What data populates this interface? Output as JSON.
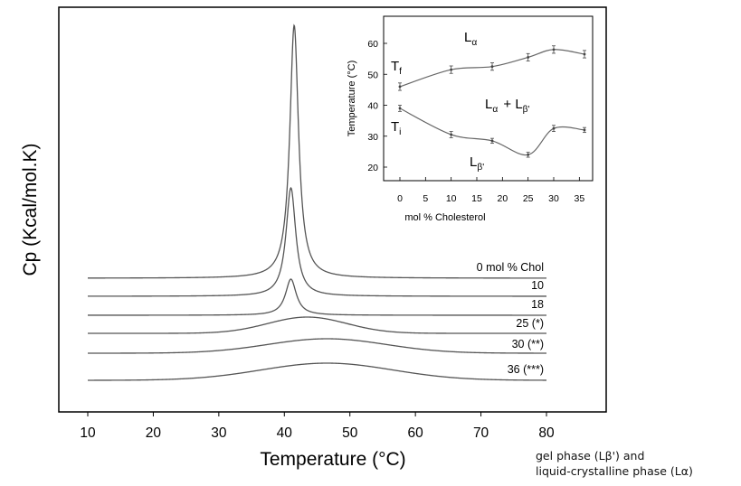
{
  "caption": {
    "line1": "gel phase (Lβ') and",
    "line2": "liquid-crystalline phase (Lα)"
  },
  "chart_data": [
    {
      "type": "line",
      "xlabel": "Temperature (°C)",
      "ylabel": "Cp (Kcal/mol.K)",
      "xlim": [
        5,
        88
      ],
      "x_ticks": [
        10,
        20,
        30,
        40,
        50,
        60,
        70,
        80
      ],
      "y_ticks_shown": false,
      "series": [
        {
          "name": "0 mol % Chol",
          "baseline": 0,
          "peak_x": 41.5,
          "peak_height": 280,
          "width": 0.8,
          "broad": false
        },
        {
          "name": "10",
          "baseline": 1,
          "peak_x": 41.0,
          "peak_height": 120,
          "width": 0.9,
          "broad": false
        },
        {
          "name": "18",
          "baseline": 2,
          "peak_x": 41.0,
          "peak_height": 40,
          "width": 1.0,
          "broad": false
        },
        {
          "name": "25 (*)",
          "baseline": 3,
          "peak_x": 43.5,
          "peak_height": 18,
          "width": 6.0,
          "broad": true
        },
        {
          "name": "30 (**)",
          "baseline": 4,
          "peak_x": 46.5,
          "peak_height": 16,
          "width": 9.0,
          "broad": true
        },
        {
          "name": "36 (***)",
          "baseline": 5,
          "peak_x": 46.5,
          "peak_height": 19,
          "width": 10.0,
          "broad": true
        }
      ]
    },
    {
      "type": "line",
      "xlabel": "mol % Cholesterol",
      "ylabel": "Temperature (°C)",
      "xlim": [
        -3,
        37
      ],
      "ylim": [
        15,
        68
      ],
      "x_ticks": [
        0,
        5,
        10,
        15,
        20,
        25,
        30,
        35
      ],
      "y_ticks": [
        20,
        30,
        40,
        50,
        60
      ],
      "region_labels": {
        "top": "L",
        "top_sub": "α",
        "middle": "L",
        "middle_sub": "α",
        "middle_plus": "+ L",
        "middle_sub2": "β'",
        "bottom": "L",
        "bottom_sub": "β'",
        "tf": "T",
        "tf_sub": "f",
        "ti": "T",
        "ti_sub": "i"
      },
      "series": [
        {
          "name": "Tf",
          "x": [
            0,
            10,
            18,
            25,
            30,
            36
          ],
          "y": [
            46,
            51.5,
            52.5,
            55.5,
            58,
            56.5
          ],
          "err": [
            1.2,
            1.2,
            1.2,
            1.2,
            1.2,
            1.2
          ]
        },
        {
          "name": "Ti",
          "x": [
            0,
            10,
            18,
            25,
            30,
            36
          ],
          "y": [
            39,
            30.5,
            28.5,
            24,
            32.5,
            32
          ],
          "err": [
            1.0,
            1.0,
            0.8,
            0.8,
            1.0,
            0.8
          ]
        }
      ]
    }
  ]
}
